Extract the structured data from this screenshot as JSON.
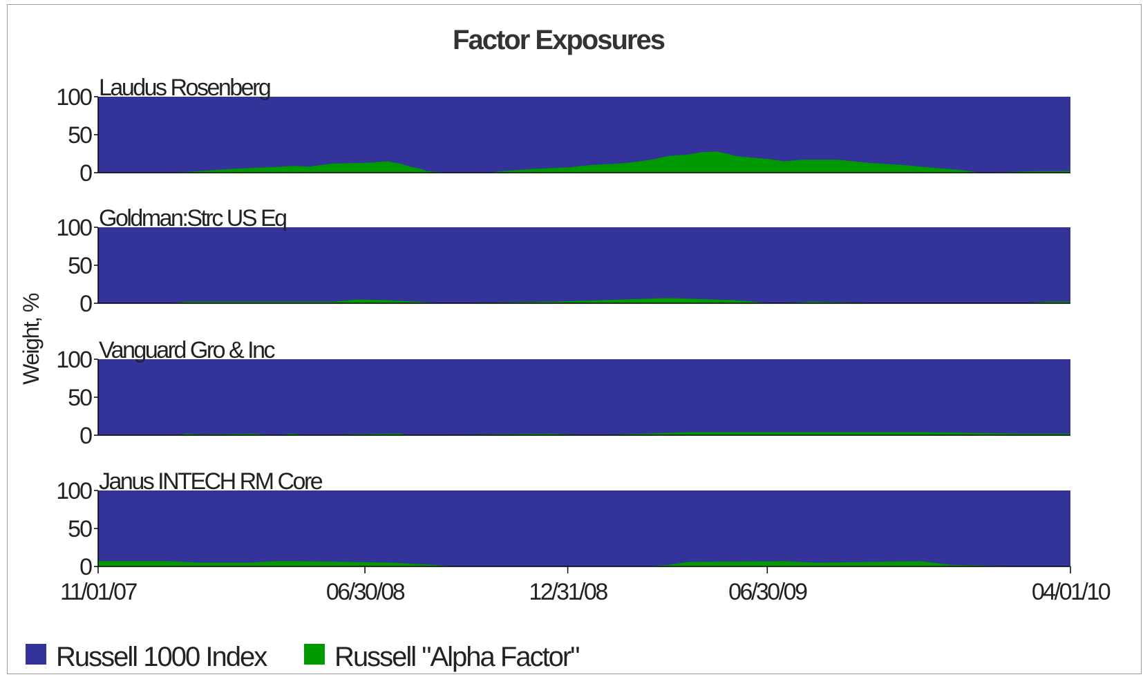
{
  "chart_data": {
    "type": "area",
    "title": "Factor Exposures",
    "ylabel": "Weight, %",
    "xlabel": "",
    "ylim": [
      0,
      100
    ],
    "yticks": [
      "0",
      "50",
      "100"
    ],
    "x_range": [
      "2007-11-01",
      "2010-04-01"
    ],
    "xticks": [
      {
        "date": "2007-11-01",
        "label": "11/01/07"
      },
      {
        "date": "2008-06-30",
        "label": "06/30/08"
      },
      {
        "date": "2008-12-31",
        "label": "12/31/08"
      },
      {
        "date": "2009-06-30",
        "label": "06/30/09"
      },
      {
        "date": "2010-04-01",
        "label": "04/01/10"
      }
    ],
    "stacking": "100% stacked",
    "colors": {
      "Russell 1000 Index": "#333399",
      "Russell \"Alpha Factor\"": "#009900"
    },
    "legend": {
      "placement": "bottom-left",
      "items": [
        {
          "name": "Russell 1000 Index",
          "color": "#333399"
        },
        {
          "name": "Russell \"Alpha Factor\"",
          "color": "#009900"
        }
      ]
    },
    "panels": [
      {
        "label": "Laudus Rosenberg",
        "alpha_series": {
          "x": [
            "2007-11-01",
            "2008-01-05",
            "2008-02-01",
            "2008-03-01",
            "2008-04-01",
            "2008-04-28",
            "2008-05-10",
            "2008-06-01",
            "2008-06-30",
            "2008-07-20",
            "2008-08-01",
            "2008-08-10",
            "2008-08-20",
            "2008-08-25",
            "2008-09-15",
            "2008-10-20",
            "2008-11-01",
            "2008-12-01",
            "2009-01-01",
            "2009-01-20",
            "2009-02-15",
            "2009-03-01",
            "2009-03-20",
            "2009-04-01",
            "2009-04-20",
            "2009-05-01",
            "2009-05-15",
            "2009-05-25",
            "2009-06-01",
            "2009-06-15",
            "2009-07-01",
            "2009-07-15",
            "2009-08-01",
            "2009-09-01",
            "2009-10-01",
            "2009-11-01",
            "2009-12-01",
            "2009-12-20",
            "2010-01-10",
            "2010-03-01",
            "2010-04-01"
          ],
          "values": [
            0,
            0,
            2,
            5,
            7,
            9,
            8,
            12,
            13,
            15,
            12,
            8,
            5,
            2,
            0,
            0,
            2,
            5,
            7,
            10,
            12,
            14,
            18,
            22,
            24,
            27,
            28,
            25,
            22,
            20,
            18,
            15,
            17,
            17,
            13,
            10,
            6,
            4,
            0,
            2,
            2
          ]
        }
      },
      {
        "label": "Goldman:Strc US Eq",
        "alpha_series": {
          "x": [
            "2007-11-01",
            "2008-01-05",
            "2008-01-20",
            "2008-06-01",
            "2008-06-25",
            "2008-07-20",
            "2008-08-15",
            "2008-09-10",
            "2008-12-15",
            "2009-02-01",
            "2009-04-01",
            "2009-06-01",
            "2009-06-25",
            "2009-07-10",
            "2009-08-10",
            "2009-10-15",
            "2010-02-15",
            "2010-03-10",
            "2010-04-01"
          ],
          "values": [
            0,
            0,
            2,
            2,
            5,
            4,
            2,
            0,
            2,
            4,
            7,
            4,
            1,
            0,
            2,
            0,
            0,
            2,
            2
          ]
        }
      },
      {
        "label": "Vanguard Gro & Inc",
        "alpha_series": {
          "x": [
            "2007-11-01",
            "2008-01-10",
            "2008-01-20",
            "2008-02-01",
            "2008-03-20",
            "2008-04-10",
            "2008-04-25",
            "2008-05-10",
            "2008-07-20",
            "2008-08-01",
            "2008-08-10",
            "2008-12-15",
            "2009-01-20",
            "2009-03-10",
            "2009-04-20",
            "2009-11-20",
            "2010-02-15",
            "2010-04-01"
          ],
          "values": [
            0,
            0,
            2,
            1,
            2,
            0,
            2,
            0,
            2,
            2,
            0,
            2,
            0,
            2,
            4,
            4,
            2,
            2
          ]
        }
      },
      {
        "label": "Janus INTECH RM Core",
        "alpha_series": {
          "x": [
            "2007-11-01",
            "2008-01-05",
            "2008-02-01",
            "2008-03-15",
            "2008-04-10",
            "2008-05-01",
            "2008-06-15",
            "2008-07-25",
            "2008-09-01",
            "2008-09-20",
            "2009-03-10",
            "2009-04-01",
            "2009-04-20",
            "2009-07-15",
            "2009-08-15",
            "2009-11-15",
            "2009-12-15",
            "2010-02-20",
            "2010-04-01"
          ],
          "values": [
            7,
            7,
            5,
            5,
            7,
            7,
            6,
            5,
            2,
            0,
            0,
            2,
            6,
            7,
            5,
            7,
            2,
            0,
            0
          ]
        }
      }
    ]
  }
}
